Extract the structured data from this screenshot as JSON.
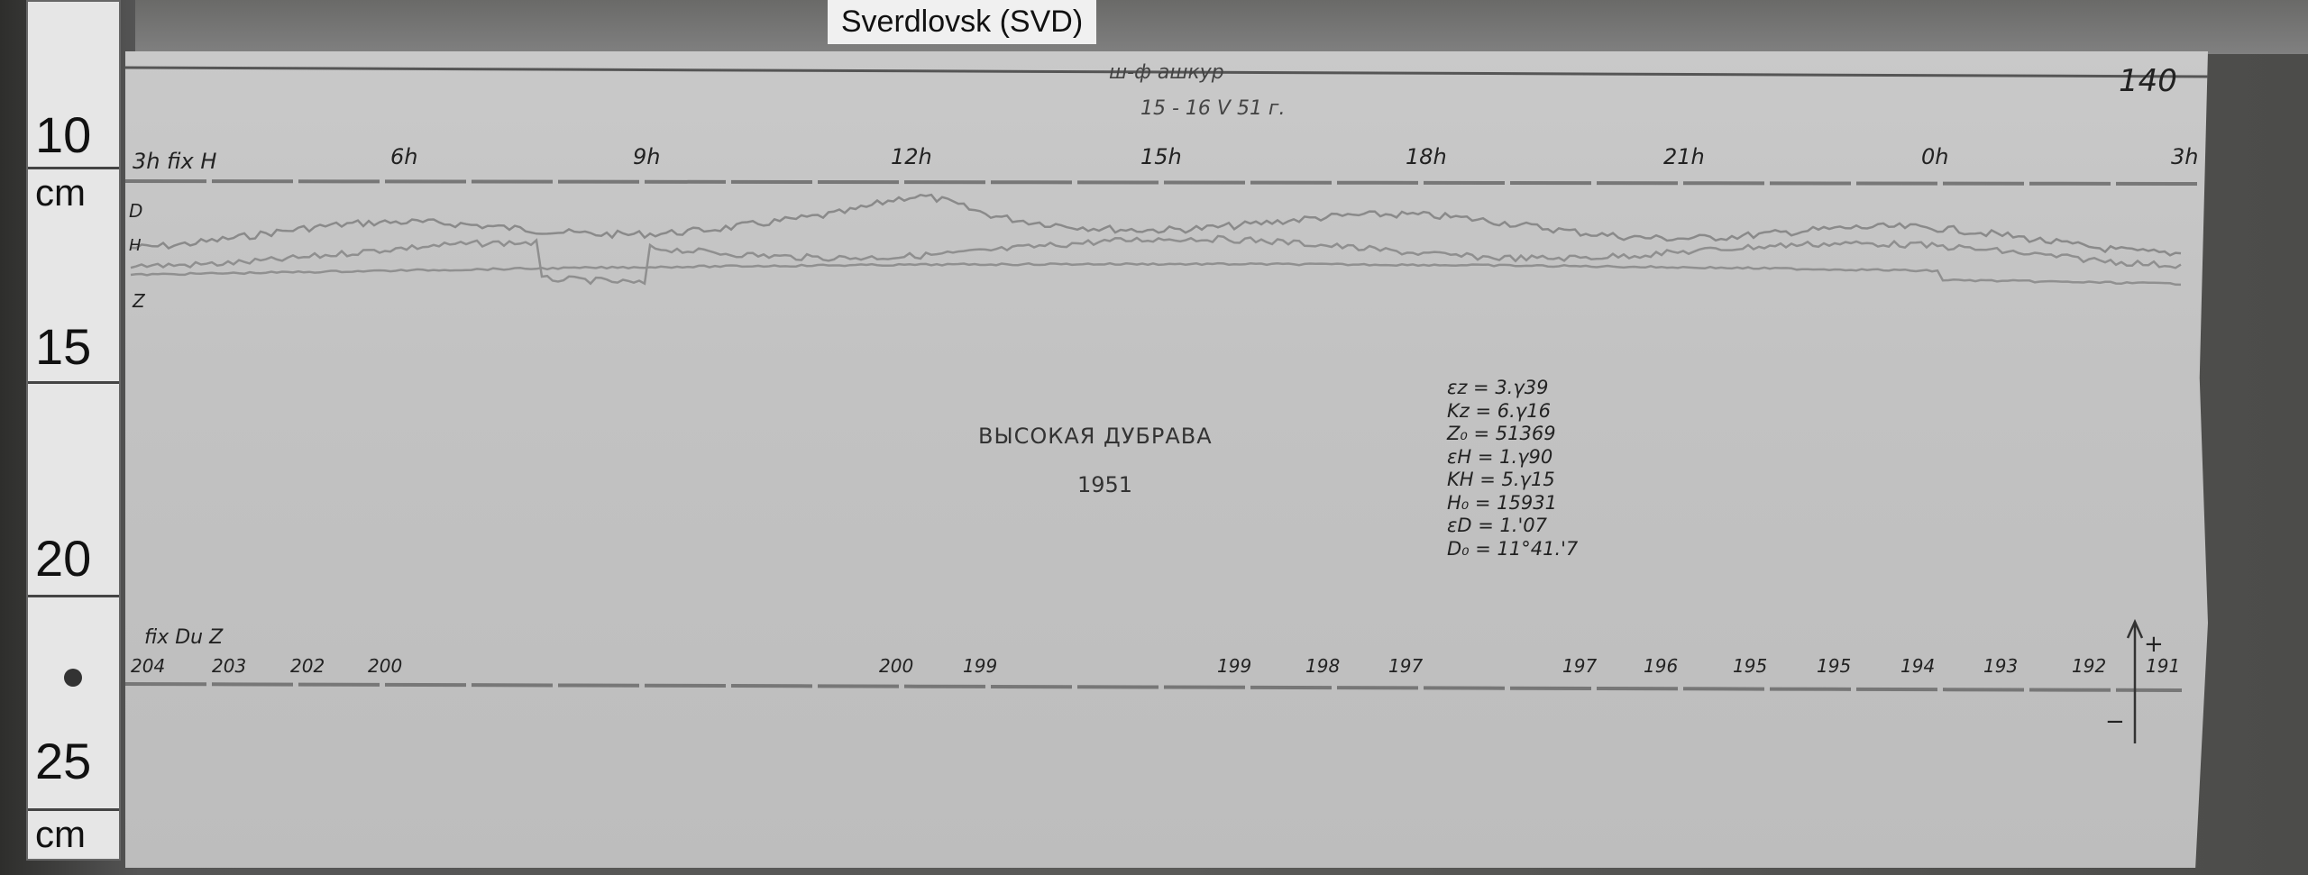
{
  "station_label": "Sverdlovsk (SVD)",
  "sheet_number": "140",
  "header_scrawl": "ш-ф ашкур",
  "date": "15 - 16 V 51 г.",
  "ruler": {
    "labels": [
      "10",
      "cm",
      "15",
      "20",
      "25",
      "cm"
    ]
  },
  "time_axis": {
    "fix_label": "fix H",
    "hours": [
      "3h",
      "6h",
      "9h",
      "12h",
      "15h",
      "18h",
      "21h",
      "0h",
      "3h"
    ]
  },
  "trace_labels": [
    "D",
    "H",
    "Z"
  ],
  "title": "ВЫСОКАЯ ДУБРАВА",
  "year": "1951",
  "constants": [
    "εz = 3.γ39",
    "Kz = 6.γ16",
    "Z₀ = 51369",
    "εH = 1.γ90",
    "KH = 5.γ15",
    "H₀ = 15931",
    "εD = 1.'07",
    "D₀ = 11°41.'7"
  ],
  "bottom_axis": {
    "fix_label": "fix Du Z",
    "values": [
      "204",
      "203",
      "202",
      "200",
      "200",
      "199",
      "199",
      "198",
      "197",
      "197",
      "196",
      "195",
      "195",
      "194",
      "193",
      "192",
      "191"
    ]
  },
  "sign_plus": "+",
  "sign_minus": "−"
}
